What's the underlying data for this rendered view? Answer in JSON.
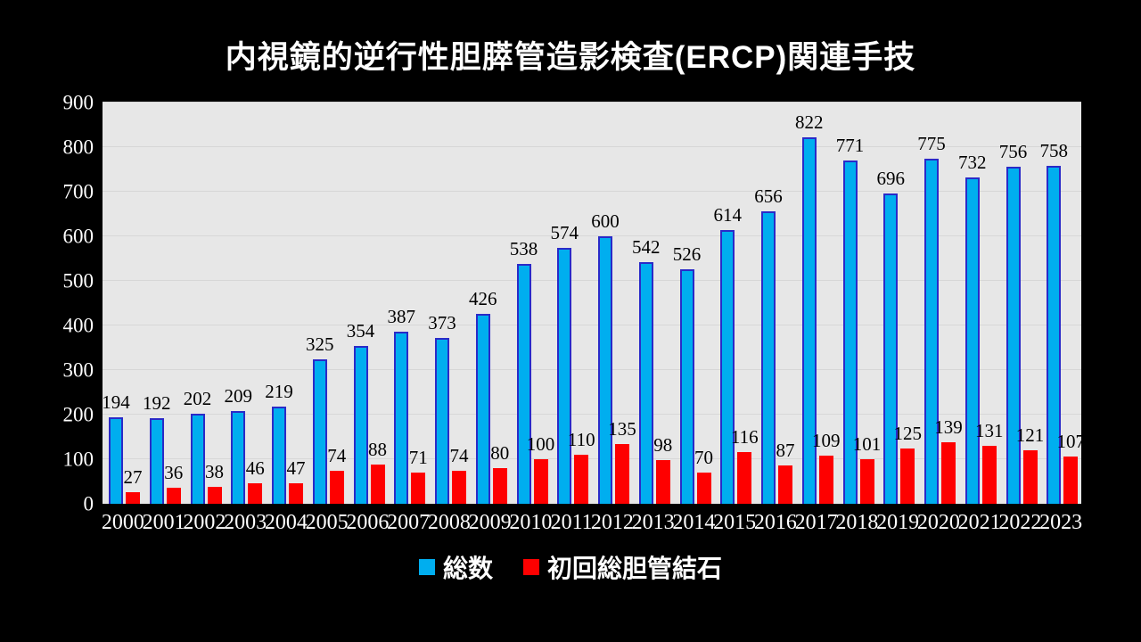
{
  "chart_data": {
    "type": "bar",
    "title": "内視鏡的逆行性胆膵管造影検査(ERCP)関連手技",
    "categories": [
      "2000",
      "2001",
      "2002",
      "2003",
      "2004",
      "2005",
      "2006",
      "2007",
      "2008",
      "2009",
      "2010",
      "2011",
      "2012",
      "2013",
      "2014",
      "2015",
      "2016",
      "2017",
      "2018",
      "2019",
      "2020",
      "2021",
      "2022",
      "2023"
    ],
    "series": [
      {
        "name": "総数",
        "color": "#00aeef",
        "border_color": "#2a2ac8",
        "values": [
          194,
          192,
          202,
          209,
          219,
          325,
          354,
          387,
          373,
          426,
          538,
          574,
          600,
          542,
          526,
          614,
          656,
          822,
          771,
          696,
          775,
          732,
          756,
          758
        ]
      },
      {
        "name": "初回総胆管結石",
        "color": "#fe0000",
        "border_color": "#fe0000",
        "values": [
          27,
          36,
          38,
          46,
          47,
          74,
          88,
          71,
          74,
          80,
          100,
          110,
          135,
          98,
          70,
          116,
          87,
          109,
          101,
          125,
          139,
          131,
          121,
          107
        ]
      }
    ],
    "ylim": [
      0,
      900
    ],
    "ytick_step": 100,
    "ytick_labels": [
      "0",
      "100",
      "200",
      "300",
      "400",
      "500",
      "600",
      "700",
      "800",
      "900"
    ],
    "grid": true,
    "legend_position": "bottom",
    "plot_background": "#e7e7e7",
    "page_background": "#000000",
    "data_label_color": "#000000",
    "axis_label_color": "#ffffff"
  }
}
